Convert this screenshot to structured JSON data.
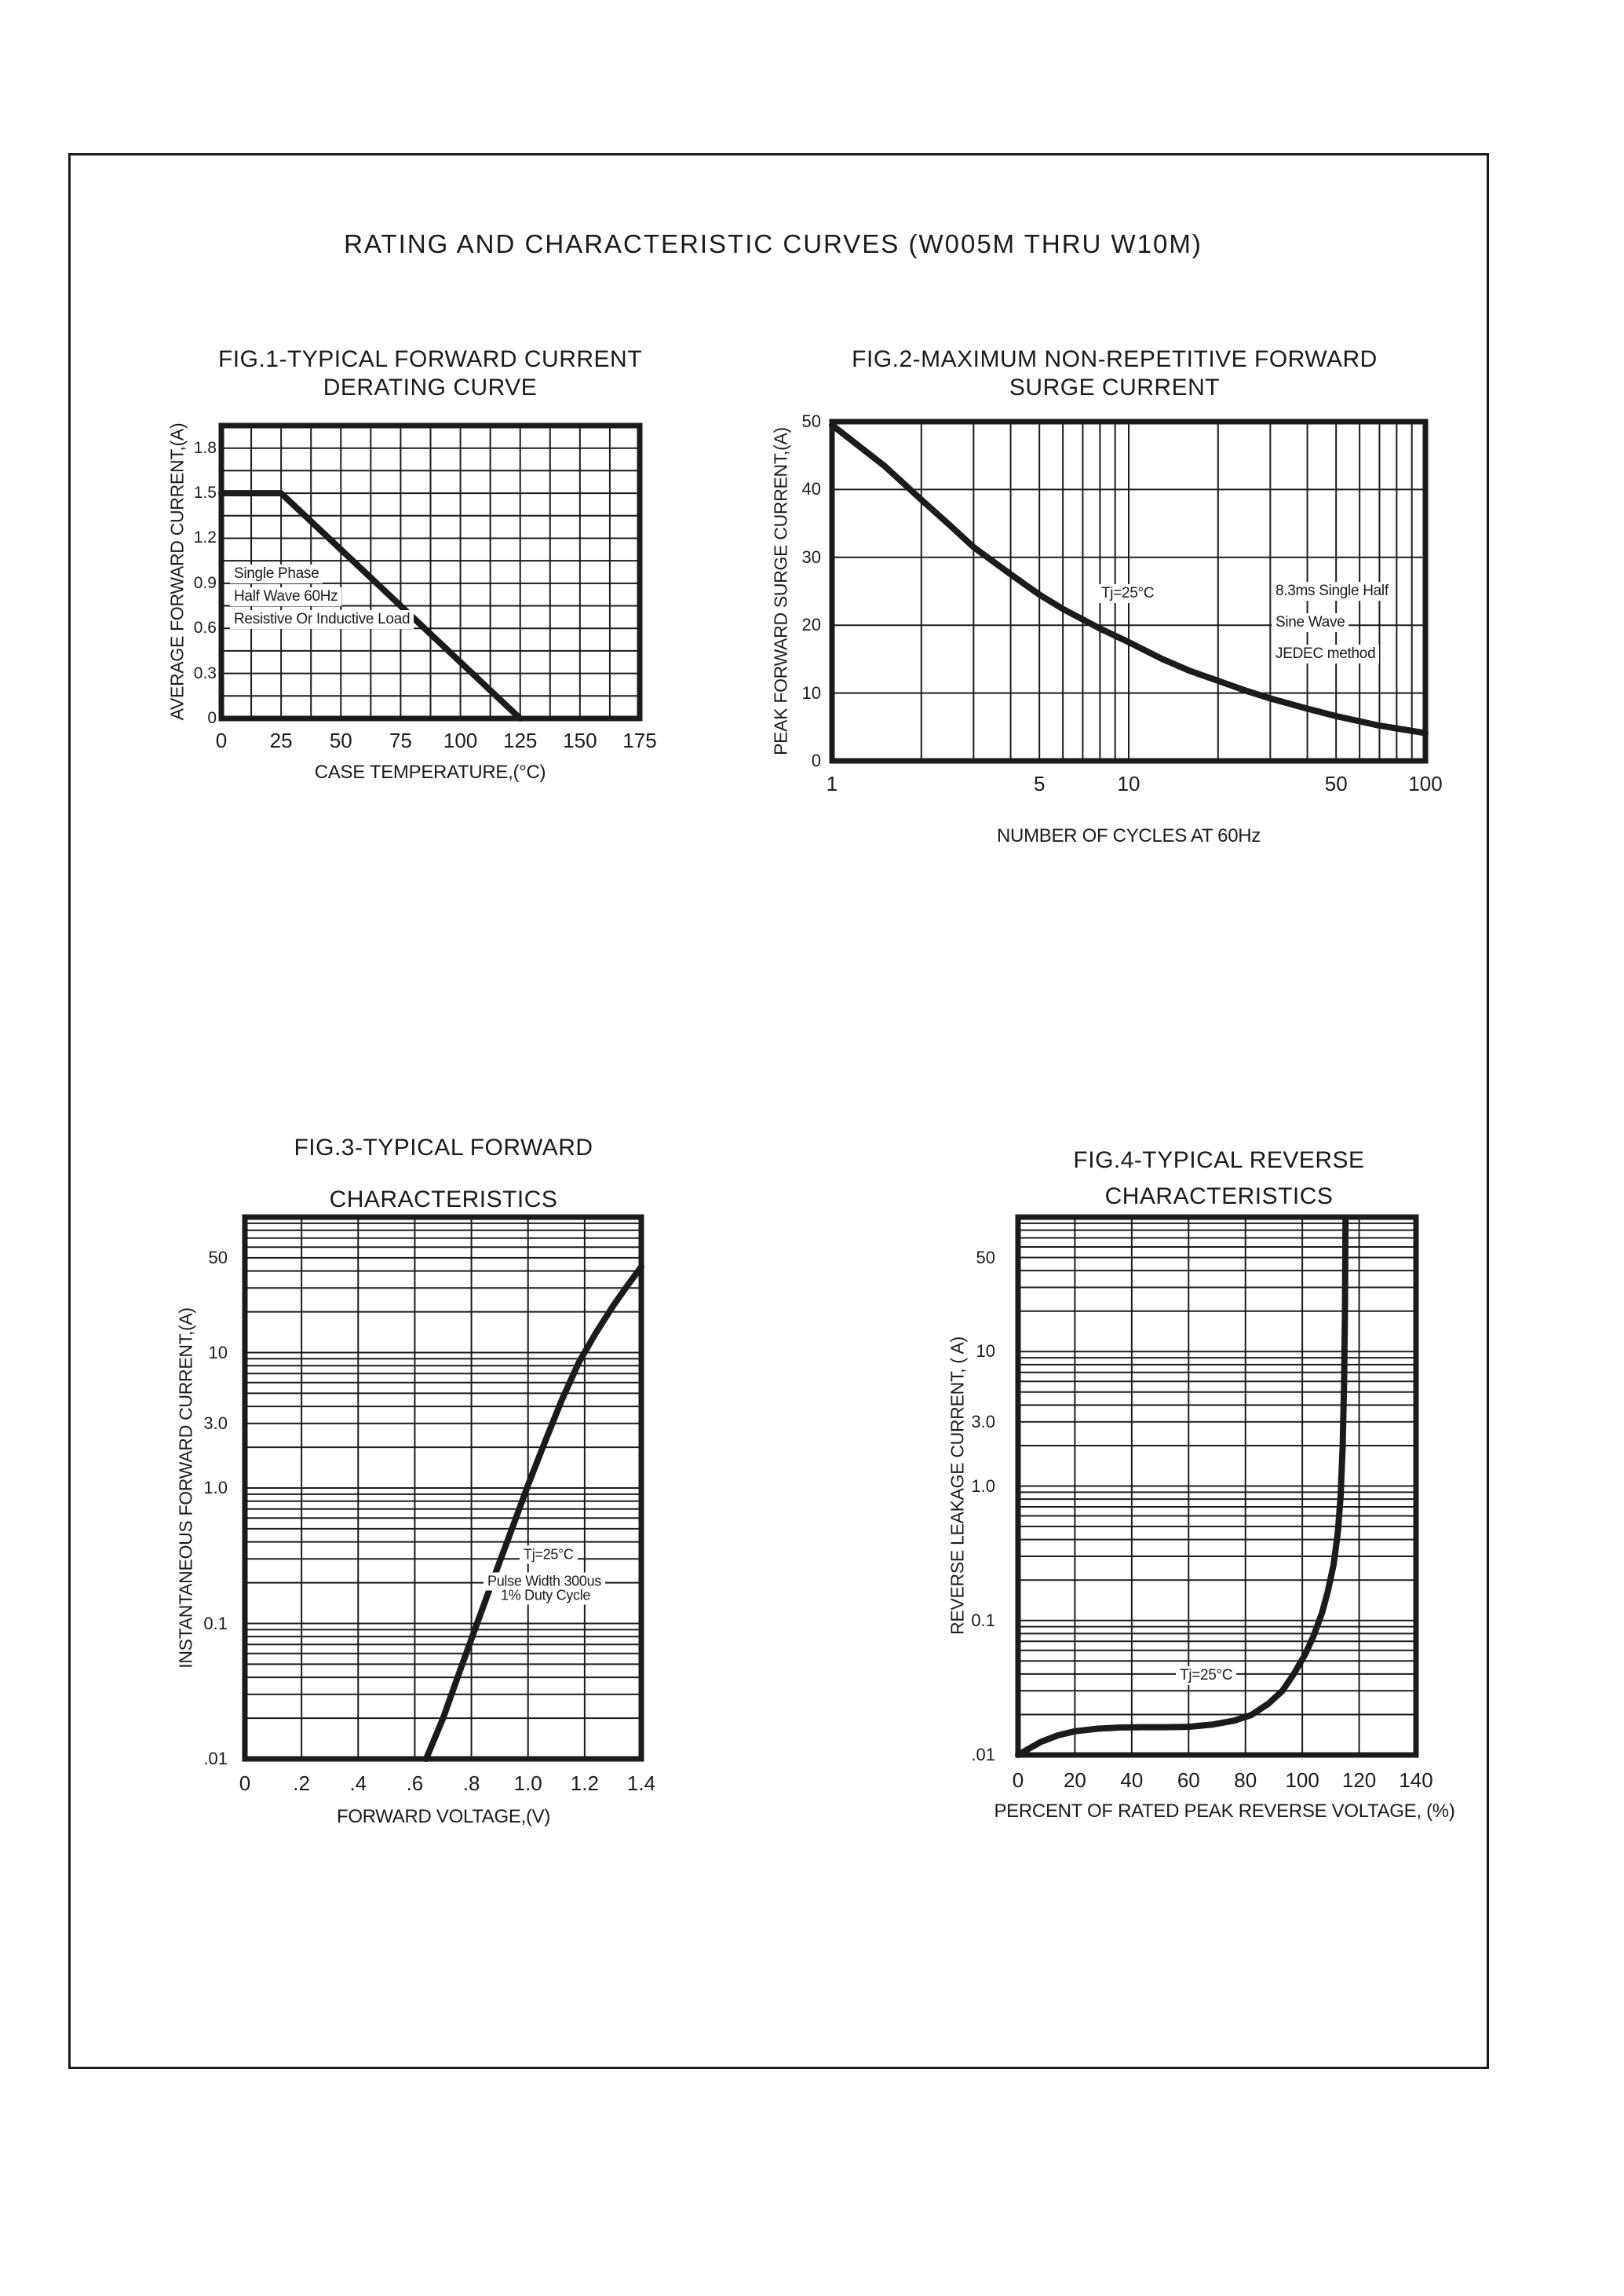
{
  "page_title": "RATING AND CHARACTERISTIC CURVES (W005M THRU W10M)",
  "chart_data": [
    {
      "id": "fig1",
      "type": "line",
      "title_lines": [
        "FIG.1-TYPICAL FORWARD CURRENT",
        "DERATING CURVE"
      ],
      "xlabel": "CASE TEMPERATURE,(°C)",
      "ylabel": "AVERAGE FORWARD CURRENT,(A)",
      "x_scale": "linear",
      "y_scale": "linear",
      "xlim": [
        0,
        175
      ],
      "ylim": [
        0,
        1.95
      ],
      "x_grid_step": 12.5,
      "y_grid_step": 0.15,
      "x_ticks": [
        {
          "v": 0,
          "label": "0"
        },
        {
          "v": 25,
          "label": "25"
        },
        {
          "v": 50,
          "label": "50"
        },
        {
          "v": 75,
          "label": "75"
        },
        {
          "v": 100,
          "label": "100"
        },
        {
          "v": 125,
          "label": "125"
        },
        {
          "v": 150,
          "label": "150"
        },
        {
          "v": 175,
          "label": "175"
        }
      ],
      "y_ticks": [
        {
          "v": 0,
          "label": "0"
        },
        {
          "v": 0.3,
          "label": "0.3"
        },
        {
          "v": 0.6,
          "label": "0.6"
        },
        {
          "v": 0.9,
          "label": "0.9"
        },
        {
          "v": 1.2,
          "label": "1.2"
        },
        {
          "v": 1.5,
          "label": "1.5"
        },
        {
          "v": 1.8,
          "label": "1.8"
        }
      ],
      "series": [
        {
          "name": "forward-current-derating",
          "points": [
            [
              0,
              1.5
            ],
            [
              25,
              1.5
            ],
            [
              125,
              0
            ]
          ]
        }
      ],
      "annotations": [
        {
          "text": "Single Phase"
        },
        {
          "text": "Half Wave 60Hz"
        },
        {
          "text": "Resistive Or Inductive Load"
        }
      ]
    },
    {
      "id": "fig2",
      "type": "line",
      "title_lines": [
        "FIG.2-MAXIMUM NON-REPETITIVE FORWARD",
        "SURGE CURRENT"
      ],
      "xlabel": "NUMBER OF CYCLES AT 60Hz",
      "ylabel": "PEAK FORWARD SURGE CURRENT,(A)",
      "x_scale": "log",
      "y_scale": "linear",
      "xlim": [
        1,
        100
      ],
      "ylim": [
        0,
        50
      ],
      "x_grid": "log",
      "y_grid_step": 10,
      "x_ticks": [
        {
          "v": 1,
          "label": "1"
        },
        {
          "v": 5,
          "label": "5"
        },
        {
          "v": 10,
          "label": "10"
        },
        {
          "v": 50,
          "label": "50"
        },
        {
          "v": 100,
          "label": "100"
        }
      ],
      "y_ticks": [
        {
          "v": 0,
          "label": "0"
        },
        {
          "v": 10,
          "label": "10"
        },
        {
          "v": 20,
          "label": "20"
        },
        {
          "v": 30,
          "label": "30"
        },
        {
          "v": 40,
          "label": "40"
        },
        {
          "v": 50,
          "label": "50"
        }
      ],
      "series": [
        {
          "name": "surge-current",
          "points": [
            [
              1,
              49.5
            ],
            [
              1.5,
              43.5
            ],
            [
              2,
              38.5
            ],
            [
              2.5,
              34.7
            ],
            [
              3,
              31.5
            ],
            [
              4,
              27.5
            ],
            [
              5,
              24.5
            ],
            [
              6,
              22.4
            ],
            [
              8,
              19.5
            ],
            [
              10,
              17.5
            ],
            [
              13,
              15
            ],
            [
              16,
              13.3
            ],
            [
              20,
              11.8
            ],
            [
              25,
              10.3
            ],
            [
              30,
              9.2
            ],
            [
              40,
              7.7
            ],
            [
              50,
              6.6
            ],
            [
              70,
              5.2
            ],
            [
              100,
              4.1
            ]
          ]
        }
      ],
      "annotations": [
        {
          "text": "Tj=25°C"
        },
        {
          "text": "8.3ms Single Half"
        },
        {
          "text": "Sine Wave"
        },
        {
          "text": "JEDEC method"
        }
      ]
    },
    {
      "id": "fig3",
      "type": "line",
      "title_lines": [
        "FIG.3-TYPICAL FORWARD",
        "CHARACTERISTICS"
      ],
      "xlabel": "FORWARD VOLTAGE,(V)",
      "ylabel": "INSTANTANEOUS FORWARD CURRENT,(A)",
      "x_scale": "linear",
      "y_scale": "log",
      "xlim": [
        0,
        1.4
      ],
      "ylim": [
        0.01,
        100
      ],
      "x_grid_step": 0.2,
      "y_grid": "log",
      "x_ticks": [
        {
          "v": 0,
          "label": "0"
        },
        {
          "v": 0.2,
          "label": ".2"
        },
        {
          "v": 0.4,
          "label": ".4"
        },
        {
          "v": 0.6,
          "label": ".6"
        },
        {
          "v": 0.8,
          "label": ".8"
        },
        {
          "v": 1.0,
          "label": "1.0"
        },
        {
          "v": 1.2,
          "label": "1.2"
        },
        {
          "v": 1.4,
          "label": "1.4"
        }
      ],
      "y_ticks": [
        {
          "v": 50,
          "label": "50"
        },
        {
          "v": 10,
          "label": "10"
        },
        {
          "v": 3,
          "label": "3.0"
        },
        {
          "v": 1,
          "label": "1.0"
        },
        {
          "v": 0.1,
          "label": "0.1"
        },
        {
          "v": 0.01,
          "label": ".01"
        }
      ],
      "series": [
        {
          "name": "forward-characteristics",
          "points": [
            [
              0.64,
              0.01
            ],
            [
              0.7,
              0.02
            ],
            [
              0.76,
              0.045
            ],
            [
              0.82,
              0.1
            ],
            [
              0.88,
              0.22
            ],
            [
              0.94,
              0.48
            ],
            [
              1.0,
              1.05
            ],
            [
              1.06,
              2.2
            ],
            [
              1.12,
              4.5
            ],
            [
              1.18,
              8.5
            ],
            [
              1.24,
              14
            ],
            [
              1.3,
              22
            ],
            [
              1.35,
              31
            ],
            [
              1.4,
              43
            ]
          ]
        }
      ],
      "annotations": [
        {
          "text": "Tj=25°C"
        },
        {
          "text": "Pulse Width 300us"
        },
        {
          "text": "1% Duty Cycle"
        }
      ]
    },
    {
      "id": "fig4",
      "type": "line",
      "title_lines": [
        "FIG.4-TYPICAL REVERSE",
        "CHARACTERISTICS"
      ],
      "xlabel": "PERCENT OF RATED PEAK REVERSE VOLTAGE, (%)",
      "ylabel": "REVERSE LEAKAGE CURRENT, ( A)",
      "x_scale": "linear",
      "y_scale": "log",
      "xlim": [
        0,
        140
      ],
      "ylim": [
        0.01,
        100
      ],
      "x_grid_step": 20,
      "y_grid": "log",
      "x_ticks": [
        {
          "v": 0,
          "label": "0"
        },
        {
          "v": 20,
          "label": "20"
        },
        {
          "v": 40,
          "label": "40"
        },
        {
          "v": 60,
          "label": "60"
        },
        {
          "v": 80,
          "label": "80"
        },
        {
          "v": 100,
          "label": "100"
        },
        {
          "v": 120,
          "label": "120"
        },
        {
          "v": 140,
          "label": "140"
        }
      ],
      "y_ticks": [
        {
          "v": 50,
          "label": "50"
        },
        {
          "v": 10,
          "label": "10"
        },
        {
          "v": 3,
          "label": "3.0"
        },
        {
          "v": 1,
          "label": "1.0"
        },
        {
          "v": 0.1,
          "label": "0.1"
        },
        {
          "v": 0.01,
          "label": ".01"
        }
      ],
      "series": [
        {
          "name": "reverse-characteristics",
          "points": [
            [
              0,
              0.01
            ],
            [
              4,
              0.0112
            ],
            [
              8,
              0.0125
            ],
            [
              14,
              0.014
            ],
            [
              20,
              0.015
            ],
            [
              28,
              0.0157
            ],
            [
              36,
              0.016
            ],
            [
              44,
              0.0161
            ],
            [
              52,
              0.0161
            ],
            [
              60,
              0.0162
            ],
            [
              68,
              0.0168
            ],
            [
              76,
              0.018
            ],
            [
              82,
              0.0198
            ],
            [
              88,
              0.024
            ],
            [
              93,
              0.03
            ],
            [
              97,
              0.04
            ],
            [
              101,
              0.056
            ],
            [
              104,
              0.077
            ],
            [
              107,
              0.115
            ],
            [
              109,
              0.165
            ],
            [
              111,
              0.26
            ],
            [
              112.5,
              0.45
            ],
            [
              113.5,
              0.85
            ],
            [
              114.2,
              2.0
            ],
            [
              114.7,
              6.0
            ],
            [
              115,
              20
            ],
            [
              115.2,
              95
            ]
          ]
        }
      ],
      "annotations": [
        {
          "text": "Tj=25°C"
        }
      ]
    }
  ]
}
